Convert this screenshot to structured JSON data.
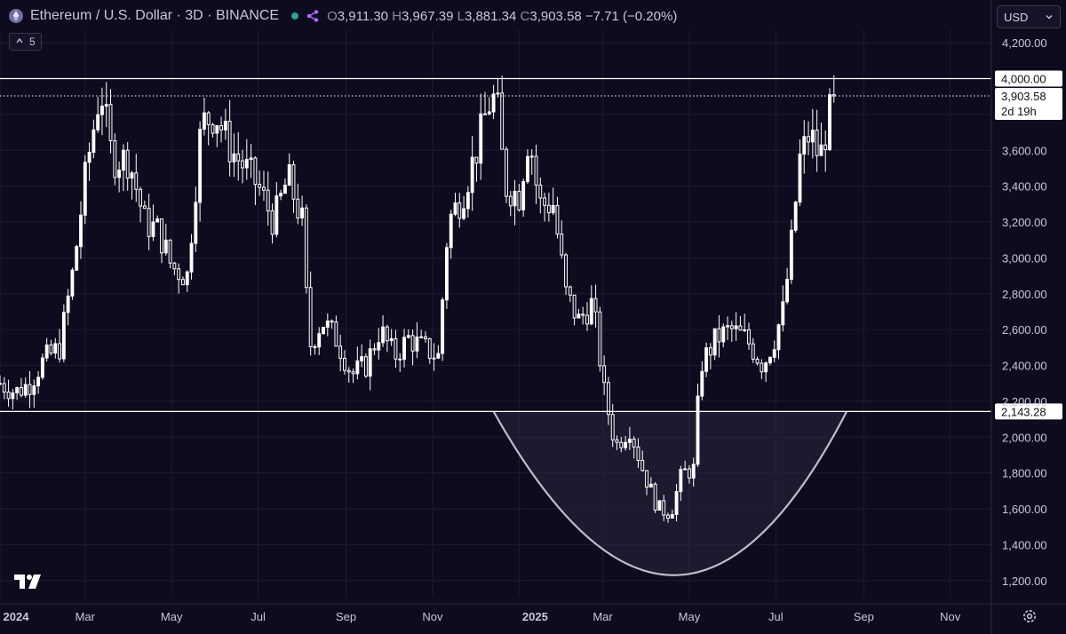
{
  "header": {
    "symbol": "Ethereum / U.S. Dollar · 3D · BINANCE",
    "ohlc": {
      "o_label": "O",
      "o": "3,911.30",
      "h_label": "H",
      "h": "3,967.39",
      "l_label": "L",
      "l": "3,881.34",
      "c_label": "C",
      "c": "3,903.58",
      "change": "−7.71 (−0.20%)"
    },
    "indicator_count": "5"
  },
  "currency": "USD",
  "icons": {
    "symbol": "ethereum-icon",
    "status": "green-dot",
    "share": "share-icon",
    "collapse": "chevron-icon",
    "currency_dropdown": "chevron-down-icon",
    "logo": "tradingview-logo",
    "settings": "gear-icon"
  },
  "colors": {
    "background": "#0e0b1f",
    "candle": "#ffffff",
    "price_line": "#ffffff",
    "cup_fill": "#2a2740",
    "cup_stroke": "#bfbccd",
    "grid": "#1e1b33",
    "text": "#c9c7d6"
  },
  "chart_data": {
    "type": "candlestick",
    "timeframe": "3D",
    "y_axis": {
      "ticks": [
        1200,
        1400,
        1600,
        1800,
        2000,
        2200,
        2400,
        2600,
        2800,
        3000,
        3200,
        3400,
        3600,
        3800,
        4200
      ],
      "tick_labels": [
        "1,200.00",
        "1,400.00",
        "1,600.00",
        "1,800.00",
        "2,000.00",
        "2,200.00",
        "2,400.00",
        "2,600.00",
        "2,800.00",
        "3,000.00",
        "3,200.00",
        "3,400.00",
        "3,600.00",
        "",
        "4,200.00"
      ],
      "range": [
        1100,
        4270
      ],
      "grid": true
    },
    "x_axis": {
      "range": [
        "2024-01-01",
        "2025-11-30"
      ],
      "ticks": [
        {
          "date": "2024-01-01",
          "label": "2024",
          "bold": true
        },
        {
          "date": "2024-03-01",
          "label": "Mar"
        },
        {
          "date": "2024-05-01",
          "label": "May"
        },
        {
          "date": "2024-07-01",
          "label": "Jul"
        },
        {
          "date": "2024-09-01",
          "label": "Sep"
        },
        {
          "date": "2024-11-01",
          "label": "Nov"
        },
        {
          "date": "2025-01-01",
          "label": "2025",
          "bold": true
        },
        {
          "date": "2025-03-01",
          "label": "Mar"
        },
        {
          "date": "2025-05-01",
          "label": "May"
        },
        {
          "date": "2025-07-01",
          "label": "Jul"
        },
        {
          "date": "2025-09-01",
          "label": "Sep"
        },
        {
          "date": "2025-11-01",
          "label": "Nov"
        }
      ]
    },
    "horizontal_lines": [
      {
        "value": 4000,
        "label": "4,000.00",
        "style": "solid"
      },
      {
        "value": 2143.28,
        "label": "2,143.28",
        "style": "solid"
      },
      {
        "value": 3903.58,
        "label": "3,903.58",
        "sublabel": "2d 19h",
        "style": "dotted"
      }
    ],
    "cup_shape": {
      "start": {
        "date": "2024-12-14",
        "value": 2143.28
      },
      "bottom": {
        "date": "2025-04-20",
        "value": 1230
      },
      "end": {
        "date": "2025-08-20",
        "value": 2143.28
      }
    },
    "close_path": [
      [
        "2024-01-01",
        2300
      ],
      [
        "2024-01-12",
        2250
      ],
      [
        "2024-01-22",
        2300
      ],
      [
        "2024-02-01",
        2430
      ],
      [
        "2024-02-12",
        2500
      ],
      [
        "2024-02-22",
        2950
      ],
      [
        "2024-03-02",
        3500
      ],
      [
        "2024-03-12",
        3950
      ],
      [
        "2024-03-20",
        3550
      ],
      [
        "2024-04-01",
        3550
      ],
      [
        "2024-04-12",
        3200
      ],
      [
        "2024-04-22",
        3150
      ],
      [
        "2024-05-01",
        2950
      ],
      [
        "2024-05-12",
        2900
      ],
      [
        "2024-05-22",
        3750
      ],
      [
        "2024-06-01",
        3800
      ],
      [
        "2024-06-12",
        3600
      ],
      [
        "2024-06-22",
        3500
      ],
      [
        "2024-07-01",
        3400
      ],
      [
        "2024-07-12",
        3200
      ],
      [
        "2024-07-22",
        3450
      ],
      [
        "2024-08-01",
        3200
      ],
      [
        "2024-08-06",
        2500
      ],
      [
        "2024-08-15",
        2650
      ],
      [
        "2024-08-25",
        2550
      ],
      [
        "2024-09-05",
        2350
      ],
      [
        "2024-09-15",
        2400
      ],
      [
        "2024-09-25",
        2600
      ],
      [
        "2024-10-05",
        2450
      ],
      [
        "2024-10-15",
        2550
      ],
      [
        "2024-10-25",
        2500
      ],
      [
        "2024-11-05",
        2450
      ],
      [
        "2024-11-12",
        3200
      ],
      [
        "2024-11-22",
        3350
      ],
      [
        "2024-12-02",
        3600
      ],
      [
        "2024-12-10",
        3850
      ],
      [
        "2024-12-16",
        3900
      ],
      [
        "2024-12-22",
        3400
      ],
      [
        "2025-01-01",
        3350
      ],
      [
        "2025-01-08",
        3700
      ],
      [
        "2025-01-15",
        3300
      ],
      [
        "2025-01-25",
        3300
      ],
      [
        "2025-02-03",
        2800
      ],
      [
        "2025-02-12",
        2650
      ],
      [
        "2025-02-22",
        2750
      ],
      [
        "2025-03-02",
        2250
      ],
      [
        "2025-03-10",
        1950
      ],
      [
        "2025-03-20",
        2050
      ],
      [
        "2025-03-30",
        1800
      ],
      [
        "2025-04-09",
        1600
      ],
      [
        "2025-04-18",
        1580
      ],
      [
        "2025-04-26",
        1800
      ],
      [
        "2025-05-04",
        1820
      ],
      [
        "2025-05-09",
        2400
      ],
      [
        "2025-05-20",
        2550
      ],
      [
        "2025-05-30",
        2600
      ],
      [
        "2025-06-10",
        2550
      ],
      [
        "2025-06-22",
        2400
      ],
      [
        "2025-06-30",
        2550
      ],
      [
        "2025-07-06",
        2700
      ],
      [
        "2025-07-11",
        3000
      ],
      [
        "2025-07-18",
        3550
      ],
      [
        "2025-07-25",
        3700
      ],
      [
        "2025-08-01",
        3550
      ],
      [
        "2025-08-08",
        3800
      ],
      [
        "2025-08-13",
        3903.58
      ]
    ]
  }
}
